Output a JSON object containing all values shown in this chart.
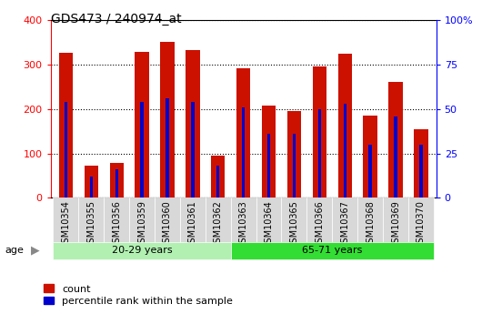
{
  "title": "GDS473 / 240974_at",
  "samples": [
    "GSM10354",
    "GSM10355",
    "GSM10356",
    "GSM10359",
    "GSM10360",
    "GSM10361",
    "GSM10362",
    "GSM10363",
    "GSM10364",
    "GSM10365",
    "GSM10366",
    "GSM10367",
    "GSM10368",
    "GSM10369",
    "GSM10370"
  ],
  "count_values": [
    328,
    72,
    78,
    330,
    352,
    333,
    95,
    292,
    208,
    195,
    296,
    324,
    185,
    262,
    155
  ],
  "percentile_values": [
    54,
    12,
    16,
    54,
    56,
    54,
    18,
    51,
    36,
    36,
    50,
    53,
    30,
    46,
    30
  ],
  "groups": [
    {
      "label": "20-29 years",
      "start": 0,
      "end": 7,
      "color": "#b2f0b2"
    },
    {
      "label": "65-71 years",
      "start": 7,
      "end": 15,
      "color": "#33dd33"
    }
  ],
  "bar_color_red": "#cc1100",
  "bar_color_blue": "#0000cc",
  "ylim_left": [
    0,
    400
  ],
  "ylim_right": [
    0,
    100
  ],
  "yticks_left": [
    0,
    100,
    200,
    300,
    400
  ],
  "yticks_right": [
    0,
    25,
    50,
    75,
    100
  ],
  "yticklabels_right": [
    "0",
    "25",
    "50",
    "75",
    "100%"
  ],
  "bg_color": "#ffffff",
  "xtick_bg": "#d8d8d8",
  "grid_color": "black",
  "legend_items": [
    "count",
    "percentile rank within the sample"
  ],
  "age_label": "age"
}
